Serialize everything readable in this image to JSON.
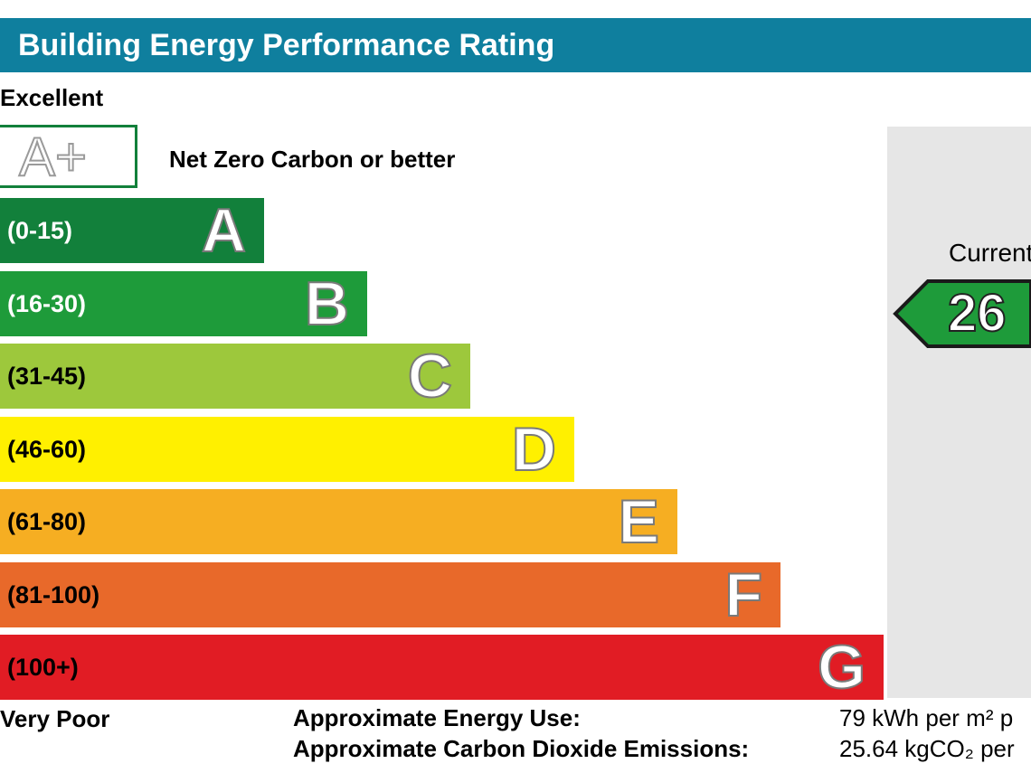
{
  "title": "Building Energy Performance Rating",
  "labels": {
    "top": "Excellent",
    "bottom": "Very Poor"
  },
  "aplus": {
    "letter": "A+",
    "note": "Net Zero Carbon or better",
    "border_color": "#12803b"
  },
  "chart_data": {
    "type": "bar",
    "title": "Building Energy Performance Rating",
    "orientation": "horizontal",
    "categories": [
      "A",
      "B",
      "C",
      "D",
      "E",
      "F",
      "G"
    ],
    "ranges": [
      "(0-15)",
      "(16-30)",
      "(31-45)",
      "(46-60)",
      "(61-80)",
      "(81-100)",
      "(100+)"
    ],
    "colors": [
      "#12803b",
      "#1e9b3a",
      "#9dc83c",
      "#fff000",
      "#f6ae22",
      "#e8692a",
      "#e11c24"
    ],
    "range_text_colors": [
      "#ffffff",
      "#ffffff",
      "#000000",
      "#000000",
      "#000000",
      "#000000",
      "#000000"
    ],
    "relative_length": [
      1,
      2,
      3,
      4,
      5,
      6,
      7
    ],
    "current": {
      "label": "Current",
      "value": "26",
      "band": "B"
    }
  },
  "footer": {
    "energy_label": "Approximate Energy Use:",
    "energy_value": "79 kWh per m² p",
    "co2_label": "Approximate Carbon Dioxide Emissions:",
    "co2_value": "25.64 kgCO₂ per"
  }
}
